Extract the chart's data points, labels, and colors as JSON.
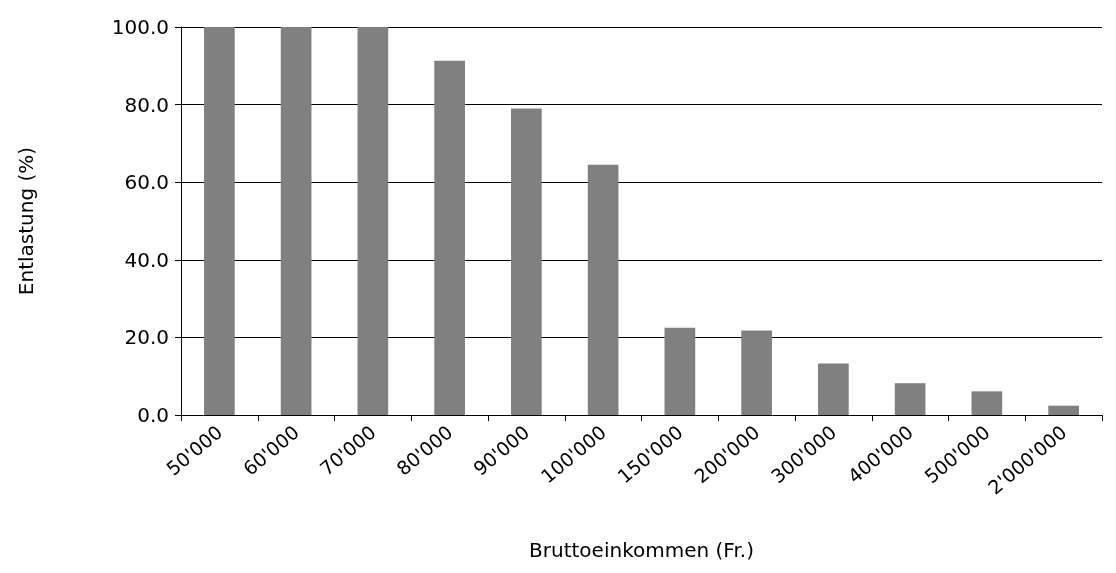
{
  "chart_data": {
    "type": "bar",
    "xlabel": "Bruttoeinkommen (Fr.)",
    "ylabel": "Entlastung (%)",
    "categories": [
      "50'000",
      "60'000",
      "70'000",
      "80'000",
      "90'000",
      "100'000",
      "150'000",
      "200'000",
      "300'000",
      "400'000",
      "500'000",
      "2'000'000"
    ],
    "values": [
      100,
      100,
      100,
      91.3,
      79,
      64.5,
      22.5,
      21.8,
      13.3,
      8.2,
      6.1,
      2.4
    ],
    "color": "#808080",
    "ylim": [
      0,
      100
    ],
    "yticks": [
      {
        "value": 0,
        "label": "0.0"
      },
      {
        "value": 20,
        "label": "20.0"
      },
      {
        "value": 40,
        "label": "40.0"
      },
      {
        "value": 60,
        "label": "60.0"
      },
      {
        "value": 80,
        "label": "80.0"
      },
      {
        "value": 100,
        "label": "100.0"
      }
    ],
    "grid": "y"
  }
}
